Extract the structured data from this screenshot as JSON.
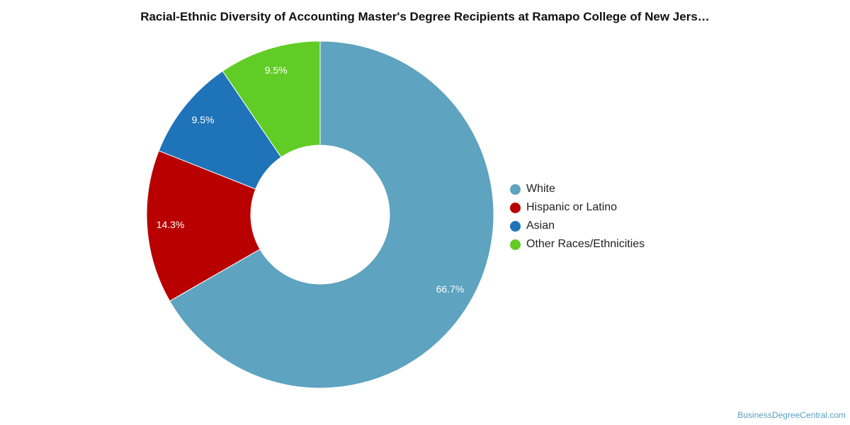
{
  "title": "Racial-Ethnic Diversity of Accounting Master's Degree Recipients at Ramapo College of New Jers…",
  "watermark": "BusinessDegreeCentral.com",
  "chart_data": {
    "type": "pie",
    "donut": true,
    "title": "Racial-Ethnic Diversity of Accounting Master's Degree Recipients at Ramapo College of New Jers…",
    "legend_position": "right",
    "start": "top, clockwise",
    "slices": [
      {
        "name": "White",
        "value": 66.7,
        "label": "66.7%",
        "color": "#5ea3bf"
      },
      {
        "name": "Hispanic or Latino",
        "value": 14.3,
        "label": "14.3%",
        "color": "#b80000"
      },
      {
        "name": "Asian",
        "value": 9.5,
        "label": "9.5%",
        "color": "#1f73b9"
      },
      {
        "name": "Other Races/Ethnicities",
        "value": 9.5,
        "label": "9.5%",
        "color": "#62cc26"
      }
    ]
  }
}
